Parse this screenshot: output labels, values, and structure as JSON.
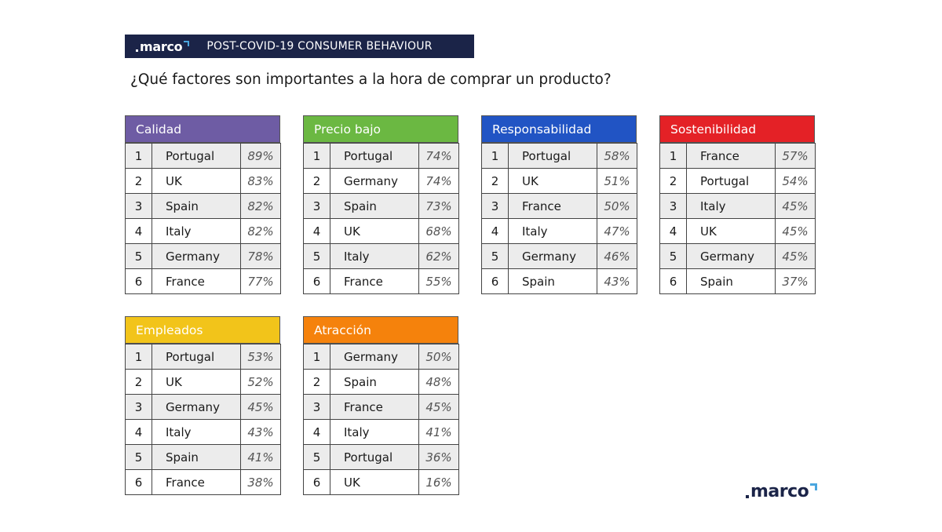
{
  "banner": {
    "logo": "marco",
    "title": "POST-COVID-19 CONSUMER BEHAVIOUR"
  },
  "question": "¿Qué factores son importantes a la hora de comprar un producto?",
  "colors": {
    "banner": "#1b2448",
    "calidad": "#6e5ca4",
    "precio_bajo": "#6bb842",
    "responsabilidad": "#2154c4",
    "sostenibilidad": "#e42126",
    "empleados": "#f2c41a",
    "atraccion": "#f5820c"
  },
  "panels": [
    {
      "title": "Calidad",
      "color": "#6e5ca4",
      "rows": [
        {
          "rank": "1",
          "country": "Portugal",
          "pct": "89%"
        },
        {
          "rank": "2",
          "country": "UK",
          "pct": "83%"
        },
        {
          "rank": "3",
          "country": "Spain",
          "pct": "82%"
        },
        {
          "rank": "4",
          "country": "Italy",
          "pct": "82%"
        },
        {
          "rank": "5",
          "country": "Germany",
          "pct": "78%"
        },
        {
          "rank": "6",
          "country": "France",
          "pct": "77%"
        }
      ]
    },
    {
      "title": "Precio bajo",
      "color": "#6bb842",
      "rows": [
        {
          "rank": "1",
          "country": "Portugal",
          "pct": "74%"
        },
        {
          "rank": "2",
          "country": "Germany",
          "pct": "74%"
        },
        {
          "rank": "3",
          "country": "Spain",
          "pct": "73%"
        },
        {
          "rank": "4",
          "country": "UK",
          "pct": "68%"
        },
        {
          "rank": "5",
          "country": "Italy",
          "pct": "62%"
        },
        {
          "rank": "6",
          "country": "France",
          "pct": "55%"
        }
      ]
    },
    {
      "title": "Responsabilidad",
      "color": "#2154c4",
      "rows": [
        {
          "rank": "1",
          "country": "Portugal",
          "pct": "58%"
        },
        {
          "rank": "2",
          "country": "UK",
          "pct": "51%"
        },
        {
          "rank": "3",
          "country": "France",
          "pct": "50%"
        },
        {
          "rank": "4",
          "country": "Italy",
          "pct": "47%"
        },
        {
          "rank": "5",
          "country": "Germany",
          "pct": "46%"
        },
        {
          "rank": "6",
          "country": "Spain",
          "pct": "43%"
        }
      ]
    },
    {
      "title": "Sostenibilidad",
      "color": "#e42126",
      "rows": [
        {
          "rank": "1",
          "country": "France",
          "pct": "57%"
        },
        {
          "rank": "2",
          "country": "Portugal",
          "pct": "54%"
        },
        {
          "rank": "3",
          "country": "Italy",
          "pct": "45%"
        },
        {
          "rank": "4",
          "country": "UK",
          "pct": "45%"
        },
        {
          "rank": "5",
          "country": "Germany",
          "pct": "45%"
        },
        {
          "rank": "6",
          "country": "Spain",
          "pct": "37%"
        }
      ]
    },
    {
      "title": "Empleados",
      "color": "#f2c41a",
      "rows": [
        {
          "rank": "1",
          "country": "Portugal",
          "pct": "53%"
        },
        {
          "rank": "2",
          "country": "UK",
          "pct": "52%"
        },
        {
          "rank": "3",
          "country": "Germany",
          "pct": "45%"
        },
        {
          "rank": "4",
          "country": "Italy",
          "pct": "43%"
        },
        {
          "rank": "5",
          "country": "Spain",
          "pct": "41%"
        },
        {
          "rank": "6",
          "country": "France",
          "pct": "38%"
        }
      ]
    },
    {
      "title": "Atracción",
      "color": "#f5820c",
      "rows": [
        {
          "rank": "1",
          "country": "Germany",
          "pct": "50%"
        },
        {
          "rank": "2",
          "country": "Spain",
          "pct": "48%"
        },
        {
          "rank": "3",
          "country": "France",
          "pct": "45%"
        },
        {
          "rank": "4",
          "country": "Italy",
          "pct": "41%"
        },
        {
          "rank": "5",
          "country": "Portugal",
          "pct": "36%"
        },
        {
          "rank": "6",
          "country": "UK",
          "pct": "16%"
        }
      ]
    }
  ],
  "footer": {
    "logo": "marco"
  }
}
